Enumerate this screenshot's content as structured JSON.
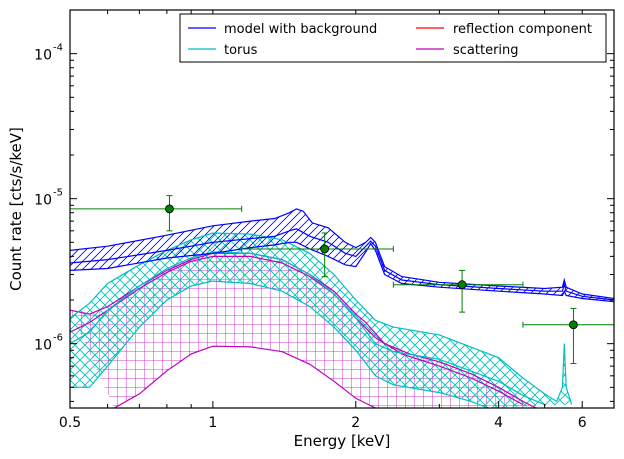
{
  "chart_data": {
    "type": "line",
    "xlabel": "Energy [keV]",
    "ylabel": "Count rate [cts/s/keV]",
    "x_scale": "log",
    "y_scale": "log",
    "xlim": [
      0.5,
      7.0
    ],
    "ylim": [
      3.6e-07,
      0.0002
    ],
    "x_ticks": [
      {
        "value": 0.5,
        "label": "0.5"
      },
      {
        "value": 1,
        "label": "1"
      },
      {
        "value": 2,
        "label": "2"
      },
      {
        "value": 4,
        "label": "4"
      },
      {
        "value": 6,
        "label": "6"
      }
    ],
    "y_ticks": [
      {
        "value": 1e-06,
        "base": "10",
        "exp": "-6"
      },
      {
        "value": 1e-05,
        "base": "10",
        "exp": "-5"
      },
      {
        "value": 0.0001,
        "base": "10",
        "exp": "-4"
      }
    ],
    "legend": {
      "position": "top-right",
      "entries": [
        {
          "label": "model with background",
          "color": "#0000ff"
        },
        {
          "label": "reflection component",
          "color": "#ff0000"
        },
        {
          "label": "torus",
          "color": "#00bfbf"
        },
        {
          "label": "scattering",
          "color": "#bf00bf"
        }
      ]
    },
    "data_points": [
      {
        "x": 0.81,
        "y": 8.5e-06,
        "xerr": [
          0.5,
          1.15
        ],
        "yerr": [
          6e-06,
          1.05e-05
        ]
      },
      {
        "x": 1.72,
        "y": 4.5e-06,
        "xerr": [
          1.15,
          2.4
        ],
        "yerr": [
          2.9e-06,
          5.8e-06
        ]
      },
      {
        "x": 3.35,
        "y": 2.55e-06,
        "xerr": [
          2.4,
          4.5
        ],
        "yerr": [
          1.65e-06,
          3.2e-06
        ]
      },
      {
        "x": 5.75,
        "y": 1.35e-06,
        "xerr": [
          4.5,
          7.0
        ],
        "yerr": [
          7.3e-07,
          1.75e-06
        ]
      }
    ],
    "series": [
      {
        "name": "model with background",
        "color": "#0000ff",
        "band_hatch": "diagonal",
        "upper": [
          [
            0.5,
            4.4e-06
          ],
          [
            0.6,
            4.7e-06
          ],
          [
            0.8,
            5.6e-06
          ],
          [
            1.0,
            6.5e-06
          ],
          [
            1.2,
            7e-06
          ],
          [
            1.35,
            7.3e-06
          ],
          [
            1.45,
            8e-06
          ],
          [
            1.5,
            8.5e-06
          ],
          [
            1.55,
            8.2e-06
          ],
          [
            1.62,
            6.8e-06
          ],
          [
            1.75,
            6.3e-06
          ],
          [
            1.9,
            5e-06
          ],
          [
            2.0,
            4.6e-06
          ],
          [
            2.1,
            5e-06
          ],
          [
            2.15,
            5.4e-06
          ],
          [
            2.2,
            5e-06
          ],
          [
            2.3,
            3.4e-06
          ],
          [
            2.5,
            2.9e-06
          ],
          [
            3.0,
            2.65e-06
          ],
          [
            4.0,
            2.5e-06
          ],
          [
            5.0,
            2.4e-06
          ],
          [
            5.45,
            2.45e-06
          ],
          [
            5.5,
            2.75e-06
          ],
          [
            5.55,
            2.45e-06
          ],
          [
            6.0,
            2.2e-06
          ],
          [
            7.0,
            2.05e-06
          ]
        ],
        "lower": [
          [
            0.5,
            3.2e-06
          ],
          [
            0.6,
            3.3e-06
          ],
          [
            0.8,
            3.9e-06
          ],
          [
            1.0,
            4.2e-06
          ],
          [
            1.2,
            4.6e-06
          ],
          [
            1.35,
            4.8e-06
          ],
          [
            1.45,
            5e-06
          ],
          [
            1.5,
            5e-06
          ],
          [
            1.6,
            4.5e-06
          ],
          [
            1.75,
            4e-06
          ],
          [
            1.9,
            3.5e-06
          ],
          [
            2.0,
            3.4e-06
          ],
          [
            2.1,
            4.3e-06
          ],
          [
            2.15,
            4.9e-06
          ],
          [
            2.2,
            4.4e-06
          ],
          [
            2.3,
            3e-06
          ],
          [
            2.5,
            2.6e-06
          ],
          [
            3.0,
            2.45e-06
          ],
          [
            4.0,
            2.3e-06
          ],
          [
            5.0,
            2.2e-06
          ],
          [
            5.45,
            2.15e-06
          ],
          [
            5.5,
            2.3e-06
          ],
          [
            5.55,
            2.15e-06
          ],
          [
            6.0,
            2.05e-06
          ],
          [
            7.0,
            1.95e-06
          ]
        ],
        "center": [
          [
            0.5,
            3.6e-06
          ],
          [
            0.6,
            3.8e-06
          ],
          [
            0.8,
            4.4e-06
          ],
          [
            1.0,
            5e-06
          ],
          [
            1.2,
            5.3e-06
          ],
          [
            1.35,
            5.5e-06
          ],
          [
            1.45,
            6e-06
          ],
          [
            1.5,
            6.2e-06
          ],
          [
            1.6,
            5.5e-06
          ],
          [
            1.75,
            5e-06
          ],
          [
            1.9,
            4.2e-06
          ],
          [
            2.0,
            4e-06
          ],
          [
            2.1,
            4.7e-06
          ],
          [
            2.15,
            5.1e-06
          ],
          [
            2.2,
            4.7e-06
          ],
          [
            2.3,
            3.2e-06
          ],
          [
            2.5,
            2.75e-06
          ],
          [
            3.0,
            2.55e-06
          ],
          [
            4.0,
            2.4e-06
          ],
          [
            5.0,
            2.3e-06
          ],
          [
            5.45,
            2.3e-06
          ],
          [
            5.5,
            2.55e-06
          ],
          [
            5.55,
            2.3e-06
          ],
          [
            6.0,
            2.12e-06
          ],
          [
            7.0,
            2e-06
          ]
        ]
      },
      {
        "name": "torus",
        "color": "#00bfbf",
        "band_hatch": "cross",
        "upper": [
          [
            0.5,
            1.5e-06
          ],
          [
            0.55,
            1.9e-06
          ],
          [
            0.6,
            2.6e-06
          ],
          [
            0.7,
            3.5e-06
          ],
          [
            0.8,
            4.4e-06
          ],
          [
            0.9,
            5.2e-06
          ],
          [
            1.0,
            5.8e-06
          ],
          [
            1.2,
            5.7e-06
          ],
          [
            1.4,
            5.2e-06
          ],
          [
            1.6,
            4.2e-06
          ],
          [
            1.8,
            3e-06
          ],
          [
            2.0,
            2e-06
          ],
          [
            2.2,
            1.45e-06
          ],
          [
            2.4,
            1.3e-06
          ],
          [
            3.0,
            1.15e-06
          ],
          [
            4.0,
            8e-07
          ],
          [
            4.5,
            5.8e-07
          ],
          [
            5.0,
            4.5e-07
          ],
          [
            5.3,
            4e-07
          ],
          [
            5.45,
            5e-07
          ],
          [
            5.5,
            1e-06
          ],
          [
            5.55,
            5e-07
          ],
          [
            5.7,
            3.8e-07
          ]
        ],
        "lower": [
          [
            0.5,
            5e-07
          ],
          [
            0.55,
            5e-07
          ],
          [
            0.6,
            7e-07
          ],
          [
            0.7,
            1.3e-06
          ],
          [
            0.8,
            2e-06
          ],
          [
            0.9,
            2.5e-06
          ],
          [
            1.0,
            2.7e-06
          ],
          [
            1.2,
            2.6e-06
          ],
          [
            1.4,
            2.3e-06
          ],
          [
            1.6,
            1.8e-06
          ],
          [
            1.8,
            1.3e-06
          ],
          [
            2.0,
            9e-07
          ],
          [
            2.2,
            6e-07
          ],
          [
            2.4,
            5.2e-07
          ],
          [
            3.0,
            4.6e-07
          ],
          [
            3.5,
            4e-07
          ],
          [
            3.8,
            3.6e-07
          ]
        ],
        "center": [
          [
            0.5,
            1e-06
          ],
          [
            0.55,
            1.2e-06
          ],
          [
            0.6,
            1.7e-06
          ],
          [
            0.7,
            2.5e-06
          ],
          [
            0.8,
            3.3e-06
          ],
          [
            0.9,
            3.9e-06
          ],
          [
            1.0,
            4.3e-06
          ],
          [
            1.2,
            4.2e-06
          ],
          [
            1.4,
            3.8e-06
          ],
          [
            1.6,
            3e-06
          ],
          [
            1.8,
            2.2e-06
          ],
          [
            2.0,
            1.5e-06
          ],
          [
            2.2,
            1e-06
          ],
          [
            2.4,
            8.8e-07
          ],
          [
            3.0,
            7.8e-07
          ],
          [
            4.0,
            5.5e-07
          ],
          [
            4.5,
            4.4e-07
          ],
          [
            5.0,
            3.8e-07
          ]
        ]
      },
      {
        "name": "scattering",
        "color": "#bf00bf",
        "band_hatch": "grid",
        "upper": [
          [
            0.5,
            1.7e-06
          ],
          [
            0.55,
            1.6e-06
          ],
          [
            0.6,
            1.8e-06
          ],
          [
            0.7,
            2.5e-06
          ],
          [
            0.8,
            3.2e-06
          ],
          [
            0.9,
            3.8e-06
          ],
          [
            1.0,
            4.2e-06
          ],
          [
            1.2,
            4.2e-06
          ],
          [
            1.4,
            3.8e-06
          ],
          [
            1.6,
            3e-06
          ],
          [
            1.8,
            2.3e-06
          ],
          [
            2.0,
            1.6e-06
          ],
          [
            2.1,
            1.4e-06
          ],
          [
            2.3,
            1e-06
          ],
          [
            2.6,
            8.5e-07
          ],
          [
            3.0,
            7.5e-07
          ],
          [
            3.5,
            6.2e-07
          ],
          [
            4.0,
            5e-07
          ],
          [
            4.5,
            4e-07
          ],
          [
            4.8,
            3.6e-07
          ]
        ],
        "lower": [
          [
            0.62,
            3.6e-07
          ],
          [
            0.7,
            4.5e-07
          ],
          [
            0.8,
            6.5e-07
          ],
          [
            0.9,
            8.5e-07
          ],
          [
            1.0,
            9.6e-07
          ],
          [
            1.2,
            9.5e-07
          ],
          [
            1.4,
            8.8e-07
          ],
          [
            1.6,
            7.2e-07
          ],
          [
            1.8,
            5.5e-07
          ],
          [
            2.0,
            4.2e-07
          ],
          [
            2.2,
            3.6e-07
          ]
        ],
        "center": [
          [
            0.5,
            1.2e-06
          ],
          [
            0.55,
            1.4e-06
          ],
          [
            0.6,
            1.7e-06
          ],
          [
            0.7,
            2.4e-06
          ],
          [
            0.8,
            3.1e-06
          ],
          [
            0.9,
            3.7e-06
          ],
          [
            1.0,
            4e-06
          ],
          [
            1.2,
            4e-06
          ],
          [
            1.4,
            3.6e-06
          ],
          [
            1.6,
            2.9e-06
          ],
          [
            1.8,
            2.2e-06
          ],
          [
            2.0,
            1.5e-06
          ],
          [
            2.2,
            1.1e-06
          ],
          [
            2.5,
            8.5e-07
          ],
          [
            3.0,
            7e-07
          ],
          [
            3.5,
            5.8e-07
          ],
          [
            4.0,
            4.7e-07
          ],
          [
            4.5,
            3.8e-07
          ]
        ]
      },
      {
        "name": "reflection component",
        "color": "#ff0000",
        "band_hatch": "none",
        "center": []
      }
    ]
  }
}
